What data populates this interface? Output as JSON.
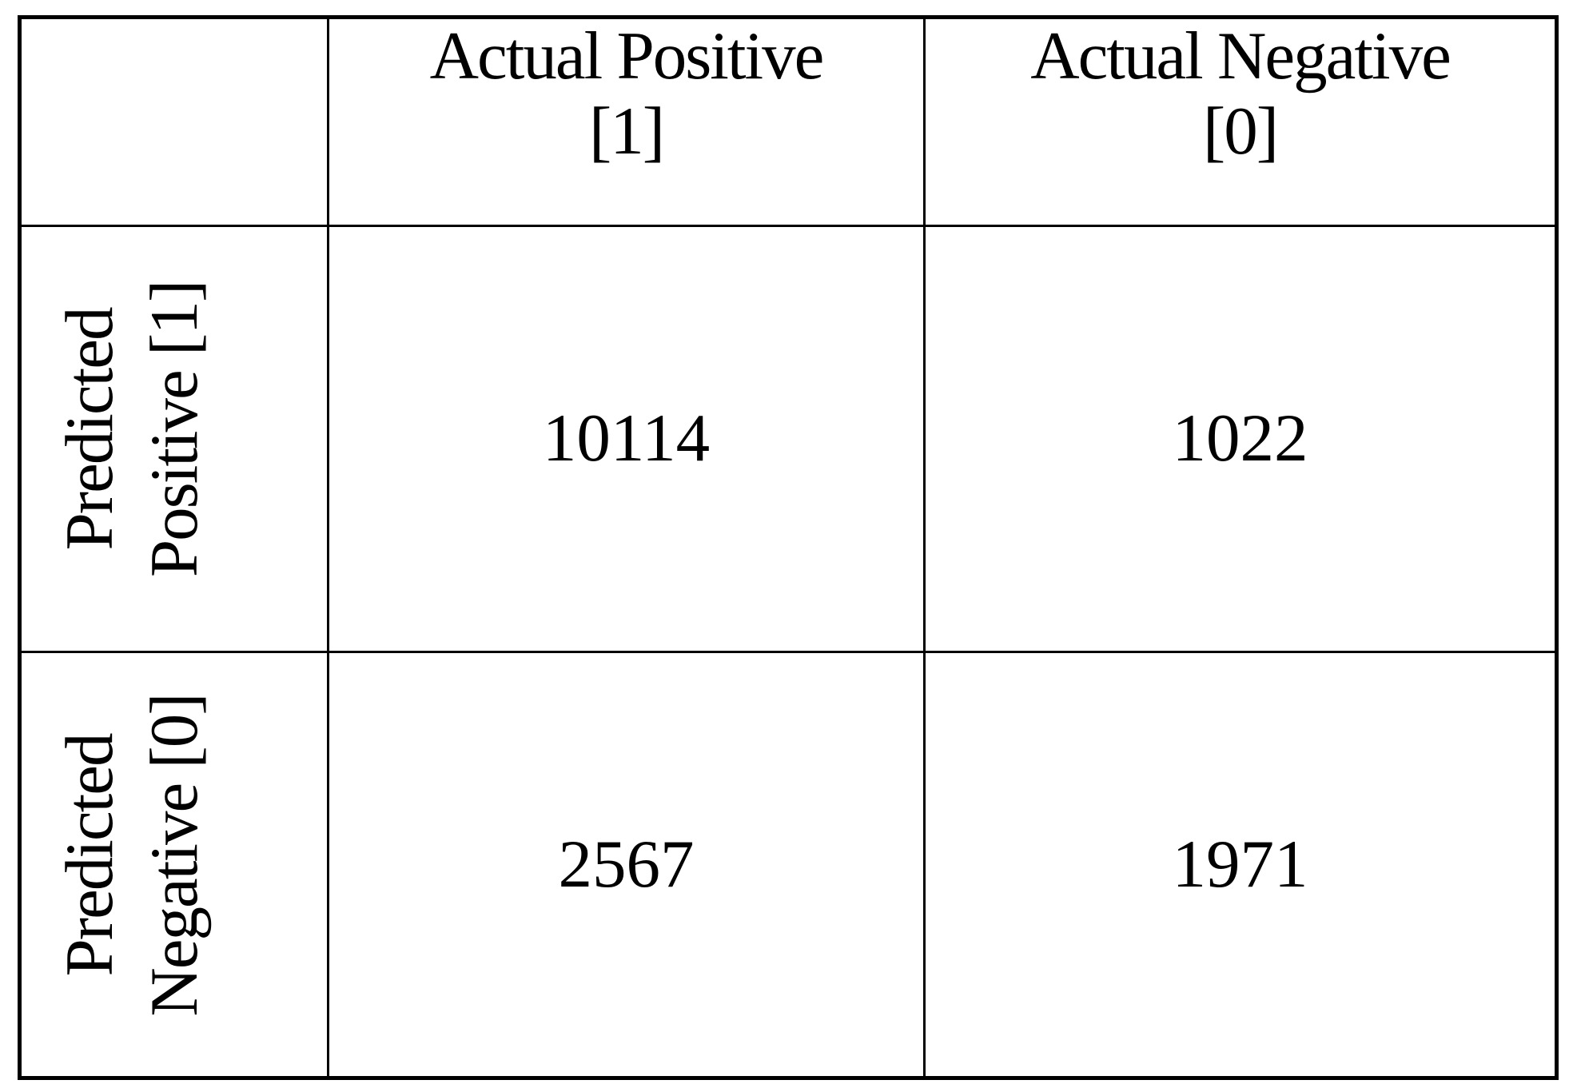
{
  "colors": {
    "background": "#ffffff",
    "border": "#000000",
    "text": "#000000"
  },
  "table": {
    "col_headers": [
      {
        "title": "Actual Positive",
        "tag": "[1]"
      },
      {
        "title": "Actual Negative",
        "tag": "[0]"
      }
    ],
    "row_headers": [
      {
        "line1": "Predicted",
        "line2": "Positive [1]"
      },
      {
        "line1": "Predicted",
        "line2": "Negative [0]"
      }
    ],
    "values": [
      [
        "10114",
        "1022"
      ],
      [
        "2567",
        "1971"
      ]
    ]
  },
  "chart_data": {
    "type": "table",
    "columns": [
      "Actual Positive [1]",
      "Actual Negative [0]"
    ],
    "rows": [
      "Predicted Positive [1]",
      "Predicted Negative [0]"
    ],
    "values": [
      [
        10114,
        1022
      ],
      [
        2567,
        1971
      ]
    ]
  }
}
